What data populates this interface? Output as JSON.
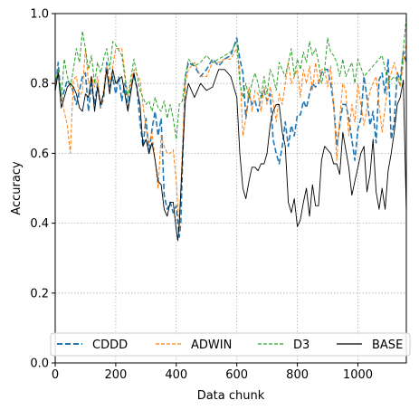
{
  "chart_data": {
    "type": "line",
    "title": "",
    "xlabel": "Data chunk",
    "ylabel": "Accuracy",
    "xlim": [
      0,
      1160
    ],
    "ylim": [
      0.0,
      1.0
    ],
    "xticks": [
      0,
      200,
      400,
      600,
      800,
      1000
    ],
    "xtick_labels": [
      "0",
      "200",
      "400",
      "600",
      "800",
      "1000"
    ],
    "yticks": [
      0.0,
      0.2,
      0.4,
      0.6,
      0.8,
      1.0
    ],
    "ytick_labels": [
      "0.0",
      "0.2",
      "0.4",
      "0.6",
      "0.8",
      "1.0"
    ],
    "grid": true,
    "legend_position": "bottom",
    "series": [
      {
        "name": "CDDD",
        "color": "#1f77b4",
        "dash": "dashed",
        "x": [
          0,
          10,
          20,
          30,
          40,
          55,
          70,
          90,
          100,
          110,
          120,
          130,
          140,
          150,
          160,
          170,
          180,
          190,
          200,
          210,
          220,
          230,
          240,
          250,
          260,
          270,
          280,
          290,
          300,
          310,
          320,
          330,
          340,
          350,
          360,
          370,
          380,
          390,
          400,
          405,
          410,
          415,
          420,
          430,
          440,
          460,
          480,
          500,
          520,
          540,
          560,
          580,
          600,
          610,
          620,
          630,
          640,
          650,
          660,
          670,
          680,
          690,
          700,
          710,
          720,
          730,
          740,
          750,
          760,
          770,
          780,
          790,
          800,
          810,
          820,
          830,
          840,
          850,
          860,
          870,
          880,
          890,
          900,
          910,
          920,
          930,
          940,
          950,
          960,
          970,
          980,
          990,
          1000,
          1010,
          1020,
          1030,
          1040,
          1050,
          1060,
          1070,
          1080,
          1090,
          1100,
          1110,
          1120,
          1130,
          1140,
          1150,
          1160
        ],
        "y": [
          0.78,
          0.86,
          0.75,
          0.78,
          0.81,
          0.79,
          0.74,
          0.82,
          0.83,
          0.72,
          0.8,
          0.74,
          0.8,
          0.73,
          0.76,
          0.86,
          0.79,
          0.82,
          0.77,
          0.82,
          0.75,
          0.8,
          0.73,
          0.79,
          0.82,
          0.79,
          0.69,
          0.62,
          0.7,
          0.6,
          0.67,
          0.72,
          0.65,
          0.7,
          0.48,
          0.44,
          0.46,
          0.43,
          0.45,
          0.4,
          0.36,
          0.4,
          0.56,
          0.82,
          0.86,
          0.85,
          0.82,
          0.84,
          0.87,
          0.85,
          0.87,
          0.88,
          0.93,
          0.87,
          0.83,
          0.7,
          0.77,
          0.74,
          0.75,
          0.72,
          0.76,
          0.78,
          0.75,
          0.77,
          0.64,
          0.6,
          0.57,
          0.62,
          0.69,
          0.62,
          0.68,
          0.65,
          0.71,
          0.71,
          0.75,
          0.73,
          0.77,
          0.8,
          0.79,
          0.8,
          0.83,
          0.84,
          0.84,
          0.8,
          0.74,
          0.62,
          0.68,
          0.74,
          0.74,
          0.7,
          0.64,
          0.58,
          0.67,
          0.7,
          0.82,
          0.76,
          0.68,
          0.72,
          0.63,
          0.81,
          0.83,
          0.77,
          0.87,
          0.64,
          0.69,
          0.83,
          0.81,
          0.89,
          0.86
        ]
      },
      {
        "name": "ADWIN",
        "color": "#ff7f0e",
        "dash": "dashed-fine",
        "x": [
          0,
          10,
          20,
          30,
          40,
          50,
          60,
          70,
          80,
          90,
          100,
          110,
          120,
          130,
          140,
          150,
          160,
          170,
          180,
          190,
          200,
          220,
          240,
          260,
          280,
          300,
          310,
          320,
          330,
          340,
          350,
          360,
          370,
          380,
          390,
          400,
          410,
          420,
          430,
          440,
          460,
          480,
          500,
          520,
          540,
          560,
          580,
          600,
          610,
          620,
          630,
          640,
          650,
          660,
          670,
          680,
          690,
          700,
          710,
          720,
          730,
          740,
          750,
          760,
          770,
          780,
          790,
          800,
          810,
          820,
          830,
          840,
          850,
          860,
          870,
          880,
          890,
          900,
          910,
          920,
          930,
          940,
          950,
          960,
          970,
          980,
          990,
          1000,
          1020,
          1040,
          1060,
          1080,
          1100,
          1120,
          1140,
          1160
        ],
        "y": [
          0.78,
          0.83,
          0.77,
          0.72,
          0.68,
          0.6,
          0.81,
          0.82,
          0.76,
          0.78,
          0.9,
          0.8,
          0.82,
          0.79,
          0.82,
          0.73,
          0.78,
          0.85,
          0.8,
          0.85,
          0.9,
          0.9,
          0.76,
          0.84,
          0.81,
          0.67,
          0.63,
          0.66,
          0.58,
          0.5,
          0.65,
          0.62,
          0.6,
          0.6,
          0.61,
          0.52,
          0.38,
          0.62,
          0.8,
          0.84,
          0.86,
          0.82,
          0.82,
          0.86,
          0.86,
          0.87,
          0.87,
          0.9,
          0.84,
          0.65,
          0.7,
          0.79,
          0.72,
          0.78,
          0.77,
          0.72,
          0.79,
          0.74,
          0.79,
          0.75,
          0.69,
          0.77,
          0.74,
          0.8,
          0.86,
          0.8,
          0.82,
          0.84,
          0.76,
          0.84,
          0.8,
          0.85,
          0.78,
          0.86,
          0.8,
          0.84,
          0.84,
          0.79,
          0.85,
          0.74,
          0.58,
          0.7,
          0.8,
          0.78,
          0.65,
          0.74,
          0.69,
          0.8,
          0.68,
          0.78,
          0.82,
          0.66,
          0.8,
          0.86,
          0.79,
          0.92
        ]
      },
      {
        "name": "D3",
        "color": "#2ca02c",
        "dash": "dashed-fine",
        "x": [
          0,
          10,
          20,
          30,
          40,
          50,
          60,
          70,
          80,
          90,
          100,
          110,
          120,
          130,
          140,
          150,
          160,
          170,
          180,
          190,
          200,
          220,
          240,
          260,
          280,
          300,
          310,
          320,
          330,
          340,
          350,
          360,
          370,
          380,
          390,
          400,
          410,
          420,
          430,
          440,
          460,
          480,
          500,
          520,
          540,
          560,
          580,
          600,
          610,
          620,
          630,
          640,
          650,
          660,
          670,
          680,
          690,
          700,
          710,
          720,
          730,
          740,
          750,
          760,
          770,
          780,
          790,
          800,
          810,
          820,
          830,
          840,
          850,
          860,
          870,
          880,
          890,
          900,
          910,
          920,
          930,
          940,
          950,
          960,
          970,
          980,
          990,
          1000,
          1020,
          1040,
          1060,
          1080,
          1100,
          1120,
          1140,
          1160
        ],
        "y": [
          0.8,
          0.84,
          0.76,
          0.87,
          0.82,
          0.79,
          0.84,
          0.9,
          0.86,
          0.95,
          0.9,
          0.84,
          0.88,
          0.8,
          0.86,
          0.83,
          0.87,
          0.9,
          0.84,
          0.92,
          0.91,
          0.88,
          0.76,
          0.87,
          0.78,
          0.74,
          0.75,
          0.72,
          0.76,
          0.73,
          0.72,
          0.75,
          0.7,
          0.74,
          0.7,
          0.64,
          0.74,
          0.75,
          0.82,
          0.87,
          0.85,
          0.86,
          0.88,
          0.86,
          0.87,
          0.88,
          0.89,
          0.92,
          0.8,
          0.76,
          0.8,
          0.76,
          0.8,
          0.83,
          0.8,
          0.76,
          0.82,
          0.77,
          0.84,
          0.82,
          0.78,
          0.86,
          0.84,
          0.82,
          0.86,
          0.9,
          0.82,
          0.87,
          0.84,
          0.89,
          0.86,
          0.92,
          0.88,
          0.9,
          0.86,
          0.8,
          0.84,
          0.93,
          0.89,
          0.88,
          0.86,
          0.82,
          0.87,
          0.82,
          0.84,
          0.86,
          0.8,
          0.87,
          0.82,
          0.84,
          0.86,
          0.88,
          0.8,
          0.82,
          0.8,
          0.99
        ]
      },
      {
        "name": "BASE",
        "color": "#000000",
        "dash": "solid",
        "x": [
          0,
          10,
          20,
          30,
          40,
          50,
          60,
          70,
          80,
          90,
          100,
          110,
          120,
          130,
          140,
          150,
          160,
          170,
          180,
          190,
          200,
          220,
          240,
          260,
          280,
          290,
          300,
          310,
          320,
          330,
          340,
          350,
          360,
          370,
          380,
          390,
          400,
          405,
          410,
          420,
          430,
          440,
          460,
          480,
          500,
          520,
          540,
          560,
          580,
          600,
          610,
          620,
          630,
          640,
          650,
          660,
          670,
          680,
          690,
          700,
          710,
          720,
          730,
          740,
          750,
          760,
          770,
          780,
          790,
          800,
          810,
          820,
          830,
          840,
          850,
          860,
          870,
          880,
          890,
          900,
          910,
          920,
          930,
          940,
          950,
          960,
          970,
          980,
          990,
          1000,
          1010,
          1020,
          1030,
          1040,
          1050,
          1060,
          1070,
          1080,
          1090,
          1100,
          1110,
          1120,
          1130,
          1140,
          1150,
          1160
        ],
        "y": [
          0.78,
          0.83,
          0.73,
          0.76,
          0.79,
          0.8,
          0.79,
          0.77,
          0.73,
          0.72,
          0.77,
          0.76,
          0.82,
          0.72,
          0.79,
          0.74,
          0.77,
          0.84,
          0.77,
          0.84,
          0.8,
          0.82,
          0.72,
          0.83,
          0.74,
          0.62,
          0.64,
          0.6,
          0.63,
          0.58,
          0.52,
          0.51,
          0.44,
          0.42,
          0.46,
          0.46,
          0.38,
          0.35,
          0.4,
          0.58,
          0.75,
          0.8,
          0.76,
          0.8,
          0.78,
          0.79,
          0.84,
          0.84,
          0.82,
          0.76,
          0.6,
          0.5,
          0.47,
          0.52,
          0.56,
          0.56,
          0.55,
          0.57,
          0.57,
          0.6,
          0.68,
          0.72,
          0.74,
          0.74,
          0.66,
          0.62,
          0.46,
          0.43,
          0.47,
          0.39,
          0.41,
          0.46,
          0.5,
          0.42,
          0.51,
          0.45,
          0.45,
          0.58,
          0.62,
          0.61,
          0.6,
          0.57,
          0.57,
          0.54,
          0.66,
          0.61,
          0.56,
          0.48,
          0.52,
          0.56,
          0.6,
          0.62,
          0.49,
          0.54,
          0.64,
          0.49,
          0.44,
          0.5,
          0.44,
          0.55,
          0.6,
          0.66,
          0.74,
          0.76,
          0.81,
          0.43
        ]
      }
    ]
  }
}
